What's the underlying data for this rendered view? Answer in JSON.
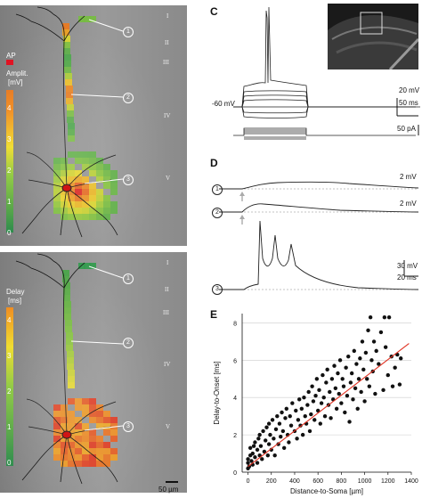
{
  "panels": {
    "a": "A",
    "b": "B",
    "c": "C",
    "d": "D",
    "e": "E"
  },
  "layers": [
    "I",
    "II",
    "III",
    "IV",
    "V"
  ],
  "colorbar_a": {
    "ap": "AP",
    "title_line1": "Amplit.",
    "title_line2": "[mV]",
    "ticks": [
      "4",
      "3",
      "2",
      "1",
      "0"
    ]
  },
  "colorbar_b": {
    "title_line1": "Delay",
    "title_line2": "[ms]",
    "ticks": [
      "4",
      "3",
      "2",
      "1",
      "0"
    ]
  },
  "sites": [
    "1",
    "2",
    "3"
  ],
  "scalebar": "50 µm",
  "panel_c": {
    "rest": "-60 mV",
    "v_scale": "20 mV",
    "t_scale": "50 ms",
    "i_scale": "50 pA"
  },
  "panel_d": {
    "scale1": "2 mV",
    "scale2": "2 mV",
    "scale3_v": "30 mV",
    "scale3_t": "20 ms"
  },
  "chart_data": {
    "type": "scatter",
    "title": "",
    "xlabel": "Distance-to-Soma [µm]",
    "ylabel": "Delay-to-Onset [ms]",
    "xlim": [
      -50,
      1400
    ],
    "ylim": [
      0,
      8.5
    ],
    "xticks": [
      "0",
      "200",
      "400",
      "600",
      "800",
      "1000",
      "1200",
      "1400"
    ],
    "yticks": [
      "0",
      "2",
      "4",
      "6",
      "8"
    ],
    "grid": true,
    "fit_line": {
      "x": [
        0,
        1380
      ],
      "y": [
        0.3,
        6.9
      ],
      "color": "#e03020"
    },
    "points": [
      [
        0,
        0.2
      ],
      [
        0,
        0.5
      ],
      [
        0,
        0.7
      ],
      [
        10,
        0.3
      ],
      [
        20,
        0.9
      ],
      [
        20,
        1.3
      ],
      [
        30,
        0.6
      ],
      [
        40,
        1.0
      ],
      [
        40,
        0.4
      ],
      [
        50,
        1.4
      ],
      [
        60,
        0.8
      ],
      [
        60,
        1.6
      ],
      [
        80,
        0.5
      ],
      [
        80,
        1.2
      ],
      [
        90,
        1.8
      ],
      [
        100,
        0.9
      ],
      [
        100,
        2.0
      ],
      [
        110,
        1.4
      ],
      [
        120,
        0.7
      ],
      [
        130,
        2.2
      ],
      [
        140,
        1.1
      ],
      [
        150,
        1.7
      ],
      [
        160,
        2.4
      ],
      [
        170,
        0.9
      ],
      [
        180,
        1.5
      ],
      [
        180,
        2.6
      ],
      [
        190,
        2.0
      ],
      [
        200,
        1.2
      ],
      [
        210,
        2.8
      ],
      [
        220,
        1.8
      ],
      [
        230,
        0.9
      ],
      [
        240,
        2.3
      ],
      [
        250,
        3.0
      ],
      [
        260,
        1.5
      ],
      [
        270,
        2.6
      ],
      [
        280,
        1.9
      ],
      [
        290,
        3.2
      ],
      [
        300,
        2.2
      ],
      [
        310,
        1.3
      ],
      [
        320,
        2.9
      ],
      [
        330,
        3.4
      ],
      [
        340,
        2.0
      ],
      [
        350,
        1.6
      ],
      [
        360,
        3.0
      ],
      [
        370,
        2.5
      ],
      [
        380,
        3.7
      ],
      [
        400,
        2.2
      ],
      [
        410,
        3.3
      ],
      [
        420,
        1.8
      ],
      [
        430,
        2.8
      ],
      [
        440,
        3.9
      ],
      [
        450,
        2.5
      ],
      [
        460,
        3.4
      ],
      [
        470,
        2.0
      ],
      [
        480,
        4.0
      ],
      [
        490,
        3.0
      ],
      [
        500,
        2.6
      ],
      [
        510,
        3.6
      ],
      [
        520,
        4.3
      ],
      [
        530,
        2.2
      ],
      [
        540,
        3.1
      ],
      [
        550,
        4.6
      ],
      [
        560,
        3.8
      ],
      [
        570,
        2.8
      ],
      [
        580,
        4.1
      ],
      [
        590,
        5.0
      ],
      [
        600,
        3.3
      ],
      [
        610,
        4.4
      ],
      [
        620,
        2.6
      ],
      [
        630,
        3.7
      ],
      [
        640,
        5.2
      ],
      [
        650,
        4.0
      ],
      [
        660,
        3.0
      ],
      [
        670,
        4.8
      ],
      [
        680,
        5.5
      ],
      [
        690,
        3.6
      ],
      [
        700,
        4.3
      ],
      [
        710,
        2.9
      ],
      [
        720,
        5.0
      ],
      [
        730,
        3.9
      ],
      [
        740,
        5.7
      ],
      [
        750,
        4.5
      ],
      [
        760,
        3.4
      ],
      [
        770,
        5.3
      ],
      [
        780,
        4.2
      ],
      [
        790,
        6.0
      ],
      [
        800,
        3.7
      ],
      [
        810,
        5.0
      ],
      [
        820,
        4.6
      ],
      [
        830,
        3.2
      ],
      [
        840,
        5.6
      ],
      [
        850,
        4.1
      ],
      [
        860,
        6.2
      ],
      [
        870,
        2.7
      ],
      [
        880,
        4.8
      ],
      [
        890,
        5.3
      ],
      [
        900,
        3.9
      ],
      [
        910,
        6.5
      ],
      [
        920,
        4.5
      ],
      [
        930,
        5.8
      ],
      [
        940,
        3.4
      ],
      [
        950,
        5.0
      ],
      [
        960,
        6.1
      ],
      [
        970,
        4.3
      ],
      [
        980,
        7.0
      ],
      [
        990,
        5.5
      ],
      [
        1000,
        3.8
      ],
      [
        1010,
        6.4
      ],
      [
        1020,
        5.0
      ],
      [
        1030,
        7.6
      ],
      [
        1040,
        4.6
      ],
      [
        1050,
        8.3
      ],
      [
        1060,
        6.0
      ],
      [
        1070,
        5.4
      ],
      [
        1080,
        7.0
      ],
      [
        1090,
        4.2
      ],
      [
        1100,
        6.5
      ],
      [
        1120,
        5.8
      ],
      [
        1140,
        7.5
      ],
      [
        1160,
        4.4
      ],
      [
        1170,
        8.3
      ],
      [
        1180,
        6.7
      ],
      [
        1200,
        5.2
      ],
      [
        1210,
        8.3
      ],
      [
        1230,
        6.2
      ],
      [
        1240,
        4.6
      ],
      [
        1260,
        5.6
      ],
      [
        1280,
        6.3
      ],
      [
        1300,
        4.7
      ],
      [
        1310,
        6.1
      ]
    ]
  }
}
